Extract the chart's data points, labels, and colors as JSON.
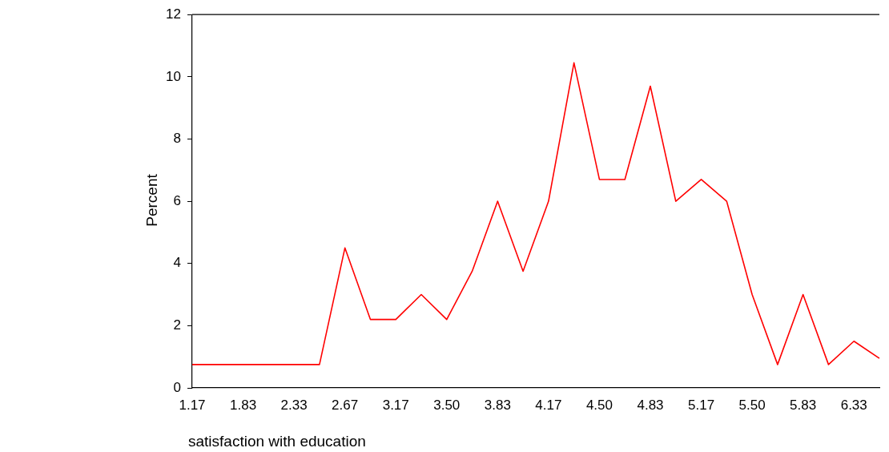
{
  "chart_data": {
    "type": "line",
    "xlabel": "satisfaction with education",
    "ylabel": "Percent",
    "categories": [
      "1.17",
      null,
      "1.83",
      null,
      "2.33",
      null,
      "2.67",
      null,
      "3.17",
      null,
      "3.50",
      null,
      "3.83",
      null,
      "4.17",
      null,
      "4.50",
      null,
      "4.83",
      null,
      "5.17",
      null,
      "5.50",
      null,
      "5.83",
      null,
      "6.33",
      null
    ],
    "series": [
      {
        "color": "#ff0000",
        "values": [
          0.75,
          0.75,
          0.75,
          0.75,
          0.75,
          0.75,
          4.5,
          2.2,
          2.2,
          3.0,
          2.2,
          3.75,
          6.0,
          3.75,
          6.0,
          10.45,
          6.7,
          6.7,
          9.7,
          6.0,
          6.7,
          6.0,
          3.0,
          0.75,
          3.0,
          0.75,
          1.5,
          0.95
        ]
      }
    ],
    "ylim": [
      0,
      12
    ],
    "yticks": [
      0,
      2,
      4,
      6,
      8,
      10,
      12
    ],
    "grid": false,
    "legend": false,
    "marker": "none",
    "line_style": "solid"
  }
}
